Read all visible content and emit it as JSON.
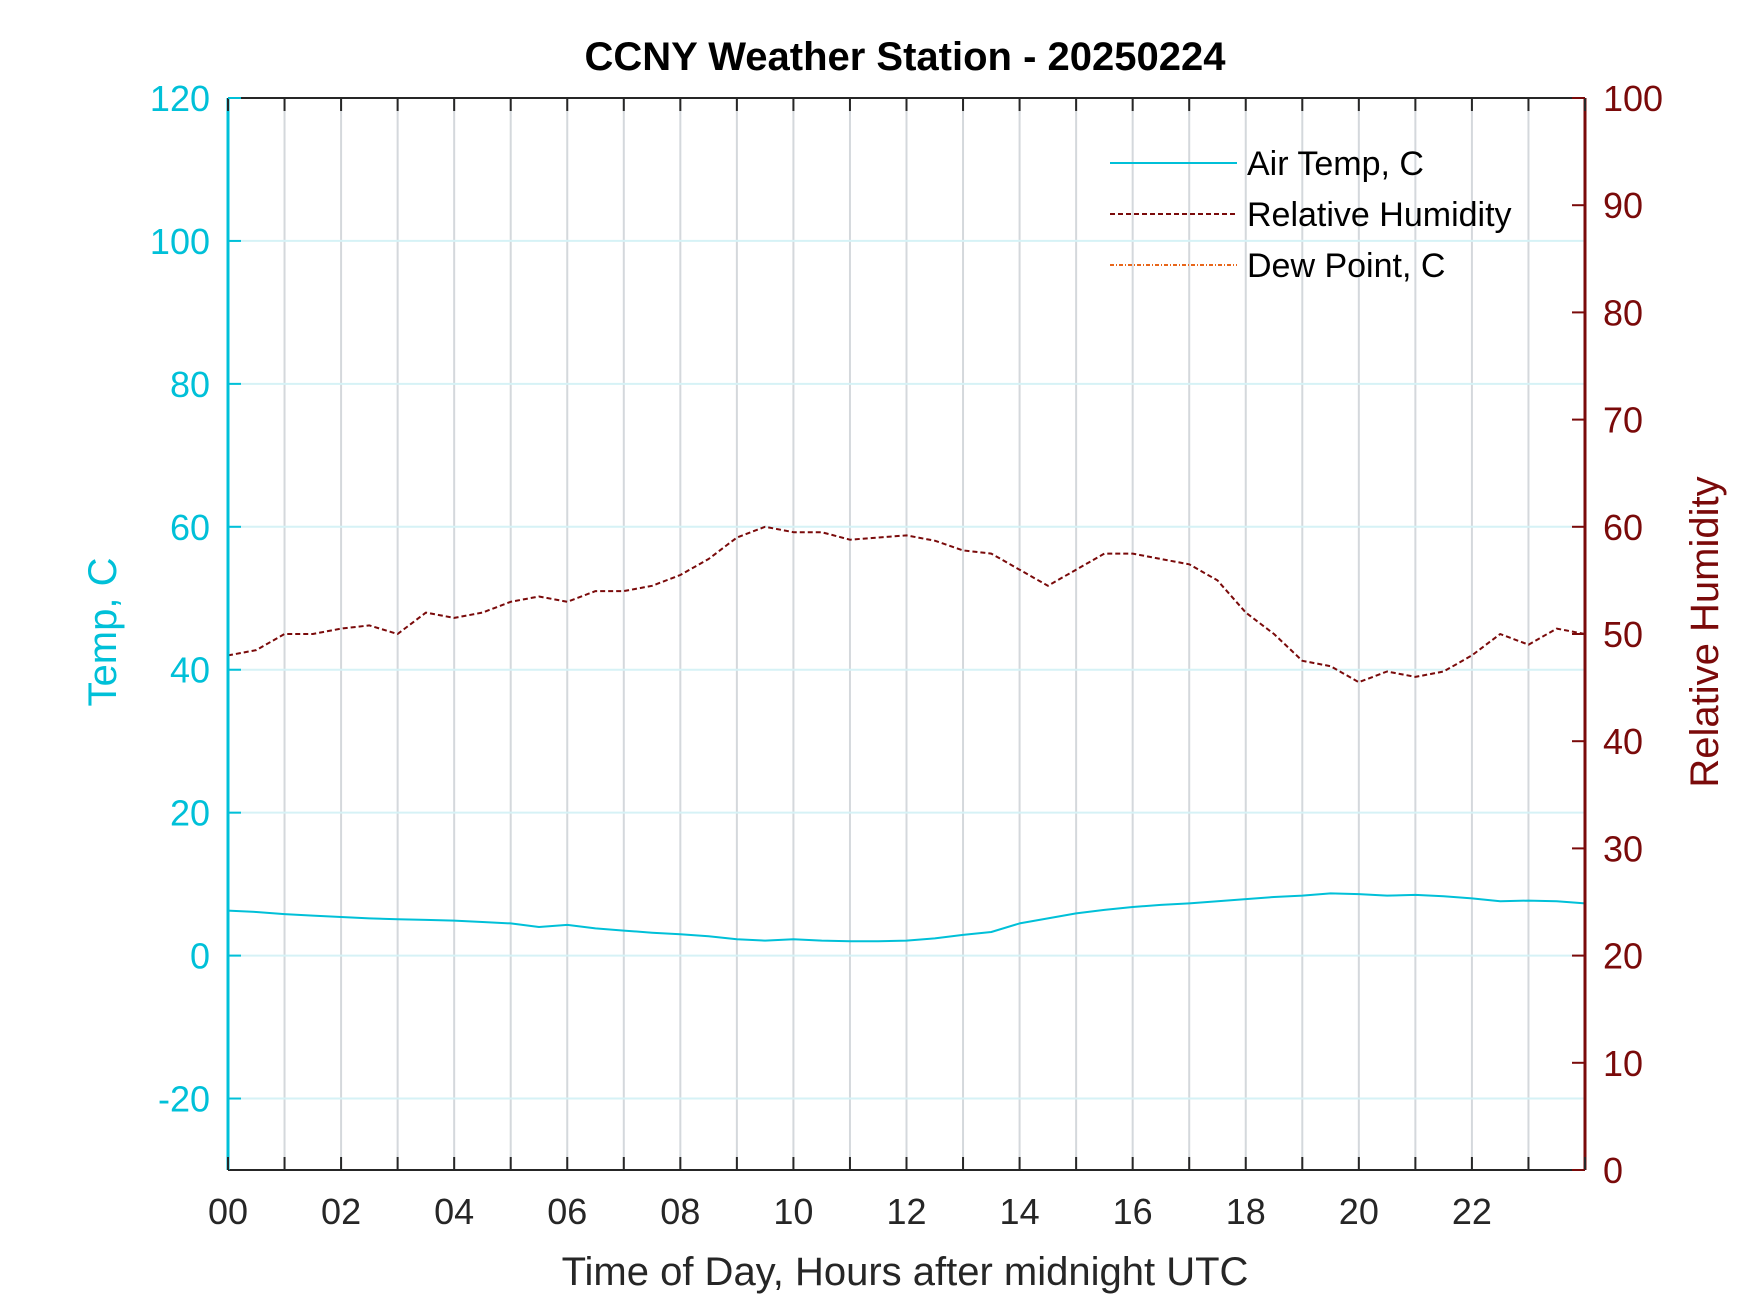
{
  "chart_data": {
    "type": "line",
    "title": "CCNY Weather Station - 20250224",
    "xlabel": "Time of Day, Hours after midnight UTC",
    "ylabel_left": "Temp, C",
    "ylabel_right": "Relative Humidity",
    "xlim": [
      0,
      24
    ],
    "ylim_left": [
      -30,
      120
    ],
    "ylim_right": [
      0,
      100
    ],
    "x_ticks": [
      0,
      2,
      4,
      6,
      8,
      10,
      12,
      14,
      16,
      18,
      20,
      22
    ],
    "x_tick_labels": [
      "00",
      "02",
      "04",
      "06",
      "08",
      "10",
      "12",
      "14",
      "16",
      "18",
      "20",
      "22"
    ],
    "y_left_ticks": [
      -20,
      0,
      20,
      40,
      60,
      80,
      100,
      120
    ],
    "y_right_ticks": [
      0,
      10,
      20,
      30,
      40,
      50,
      60,
      70,
      80,
      90,
      100
    ],
    "grid": true,
    "legend_position": "top-right",
    "series": [
      {
        "name": "Air Temp, C",
        "axis": "left",
        "color": "#00c0d8",
        "style": "solid",
        "x": [
          0,
          0.5,
          1,
          1.5,
          2,
          2.5,
          3,
          3.5,
          4,
          4.5,
          5,
          5.5,
          6,
          6.5,
          7,
          7.5,
          8,
          8.5,
          9,
          9.5,
          10,
          10.5,
          11,
          11.5,
          12,
          12.5,
          13,
          13.5,
          14,
          14.5,
          15,
          15.5,
          16,
          16.5,
          17,
          17.5,
          18,
          18.5,
          19,
          19.5,
          20,
          20.5,
          21,
          21.5,
          22,
          22.5,
          23,
          23.5,
          24
        ],
        "y": [
          6.3,
          6.1,
          5.8,
          5.6,
          5.4,
          5.2,
          5.1,
          5.0,
          4.9,
          4.7,
          4.5,
          4.0,
          4.3,
          3.8,
          3.5,
          3.2,
          3.0,
          2.7,
          2.3,
          2.1,
          2.3,
          2.1,
          2.0,
          2.0,
          2.1,
          2.4,
          2.9,
          3.3,
          4.5,
          5.2,
          5.9,
          6.4,
          6.8,
          7.1,
          7.3,
          7.6,
          7.9,
          8.2,
          8.4,
          8.7,
          8.6,
          8.4,
          8.5,
          8.3,
          8.0,
          7.6,
          7.7,
          7.6,
          7.3
        ]
      },
      {
        "name": "Relative Humidity",
        "axis": "right",
        "color": "#7a0a0a",
        "style": "dashed",
        "x": [
          0,
          0.5,
          1,
          1.5,
          2,
          2.5,
          3,
          3.5,
          4,
          4.5,
          5,
          5.5,
          6,
          6.5,
          7,
          7.5,
          8,
          8.5,
          9,
          9.5,
          10,
          10.5,
          11,
          11.5,
          12,
          12.5,
          13,
          13.5,
          14,
          14.5,
          15,
          15.5,
          16,
          16.5,
          17,
          17.5,
          18,
          18.5,
          19,
          19.5,
          20,
          20.5,
          21,
          21.5,
          22,
          22.5,
          23,
          23.5,
          24
        ],
        "y": [
          48.0,
          48.5,
          50.0,
          50.0,
          50.5,
          50.8,
          50.0,
          52.0,
          51.5,
          52.0,
          53.0,
          53.5,
          53.0,
          54.0,
          54.0,
          54.5,
          55.5,
          57.0,
          59.0,
          60.0,
          59.5,
          59.5,
          58.8,
          59.0,
          59.2,
          58.7,
          57.8,
          57.5,
          56.0,
          54.5,
          56.0,
          57.5,
          57.5,
          57.0,
          56.5,
          55.0,
          52.0,
          50.0,
          47.5,
          47.0,
          45.5,
          46.5,
          46.0,
          46.5,
          48.0,
          50.0,
          49.0,
          50.5,
          50.0
        ]
      },
      {
        "name": "Dew Point, C",
        "axis": "left",
        "color": "#e8661a",
        "style": "dashdot",
        "x": [],
        "y": []
      }
    ]
  }
}
